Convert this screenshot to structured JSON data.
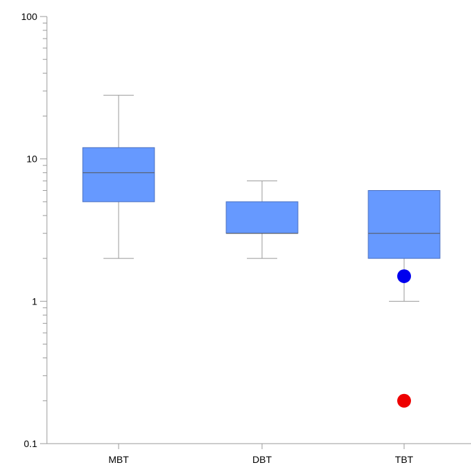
{
  "chart_data": {
    "type": "box",
    "y_scale": "log",
    "ylim": [
      0.1,
      100
    ],
    "y_ticks": [
      {
        "value": 0.1,
        "label": "0.1"
      },
      {
        "value": 1,
        "label": "1"
      },
      {
        "value": 10,
        "label": "10"
      },
      {
        "value": 100,
        "label": "100"
      }
    ],
    "categories": [
      "MBT",
      "DBT",
      "TBT"
    ],
    "boxes": [
      {
        "category": "MBT",
        "whisker_low": 2,
        "q1": 5,
        "median": 8,
        "q3": 12,
        "whisker_high": 28
      },
      {
        "category": "DBT",
        "whisker_low": 2,
        "q1": 3,
        "median": 3,
        "q3": 5,
        "whisker_high": 7
      },
      {
        "category": "TBT",
        "whisker_low": 1,
        "q1": 2,
        "median": 3,
        "q3": 6,
        "whisker_high": 6
      }
    ],
    "points": [
      {
        "category": "TBT",
        "value": 1.5,
        "color": "#0000ee"
      },
      {
        "category": "TBT",
        "value": 0.2,
        "color": "#ee0000"
      }
    ],
    "grid": false,
    "colors": {
      "box_fill": "#6699ff",
      "box_stroke": "#4a6fbf",
      "axis": "#999999",
      "whisker": "#999999",
      "median": "#555555"
    }
  }
}
